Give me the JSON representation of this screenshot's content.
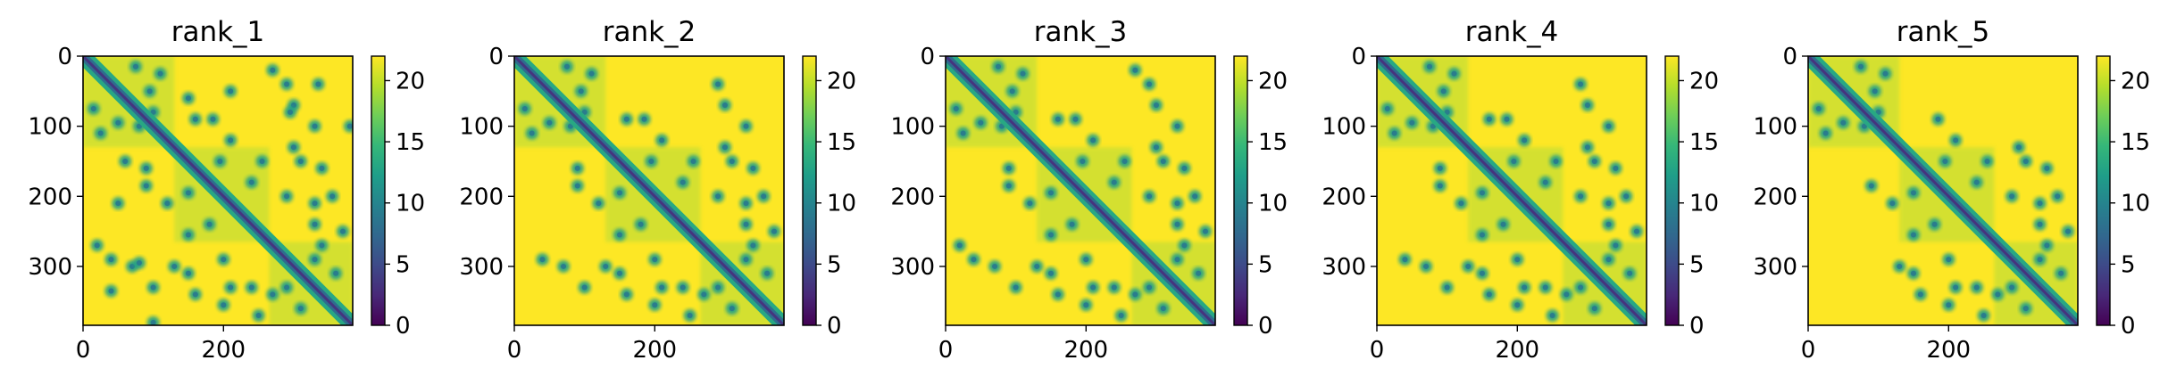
{
  "chart_data": [
    {
      "type": "heatmap",
      "title": "rank_1",
      "matrix_size": 384,
      "xlabel": "",
      "ylabel": "",
      "xlim": [
        0,
        384
      ],
      "ylim": [
        384,
        0
      ],
      "x_ticks": [
        "0",
        "200"
      ],
      "y_ticks": [
        "0",
        "100",
        "200",
        "300"
      ],
      "colorbar": {
        "min": 0,
        "max": 22,
        "ticks": [
          "0",
          "5",
          "10",
          "15",
          "20"
        ],
        "colormap": "viridis"
      },
      "off_diagonal_contacts": [
        [
          50,
          95
        ],
        [
          15,
          75
        ],
        [
          100,
          80
        ],
        [
          25,
          110
        ],
        [
          90,
          185
        ],
        [
          150,
          195
        ],
        [
          90,
          160
        ],
        [
          180,
          240
        ],
        [
          200,
          290
        ],
        [
          210,
          330
        ],
        [
          270,
          340
        ],
        [
          100,
          330
        ],
        [
          70,
          300
        ],
        [
          150,
          255
        ],
        [
          20,
          270
        ],
        [
          40,
          290
        ],
        [
          80,
          295
        ],
        [
          120,
          210
        ],
        [
          160,
          340
        ],
        [
          200,
          355
        ],
        [
          60,
          150
        ],
        [
          50,
          210
        ],
        [
          130,
          300
        ],
        [
          250,
          370
        ],
        [
          310,
          360
        ],
        [
          290,
          330
        ],
        [
          240,
          330
        ],
        [
          150,
          310
        ],
        [
          40,
          335
        ],
        [
          100,
          380
        ]
      ]
    },
    {
      "type": "heatmap",
      "title": "rank_2",
      "matrix_size": 384,
      "xlabel": "",
      "ylabel": "",
      "xlim": [
        0,
        384
      ],
      "ylim": [
        384,
        0
      ],
      "x_ticks": [
        "0",
        "200"
      ],
      "y_ticks": [
        "0",
        "100",
        "200",
        "300"
      ],
      "colorbar": {
        "min": 0,
        "max": 22,
        "ticks": [
          "0",
          "5",
          "10",
          "15",
          "20"
        ],
        "colormap": "viridis"
      },
      "off_diagonal_contacts": [
        [
          50,
          95
        ],
        [
          15,
          75
        ],
        [
          100,
          80
        ],
        [
          25,
          110
        ],
        [
          90,
          185
        ],
        [
          150,
          195
        ],
        [
          90,
          160
        ],
        [
          180,
          240
        ],
        [
          200,
          290
        ],
        [
          210,
          330
        ],
        [
          270,
          340
        ],
        [
          100,
          330
        ],
        [
          70,
          300
        ],
        [
          150,
          255
        ],
        [
          40,
          290
        ],
        [
          120,
          210
        ],
        [
          160,
          340
        ],
        [
          200,
          355
        ],
        [
          130,
          300
        ],
        [
          250,
          370
        ],
        [
          310,
          360
        ],
        [
          290,
          330
        ],
        [
          240,
          330
        ],
        [
          150,
          310
        ]
      ]
    },
    {
      "type": "heatmap",
      "title": "rank_3",
      "matrix_size": 384,
      "xlabel": "",
      "ylabel": "",
      "xlim": [
        0,
        384
      ],
      "ylim": [
        384,
        0
      ],
      "x_ticks": [
        "0",
        "200"
      ],
      "y_ticks": [
        "0",
        "100",
        "200",
        "300"
      ],
      "colorbar": {
        "min": 0,
        "max": 22,
        "ticks": [
          "0",
          "5",
          "10",
          "15",
          "20"
        ],
        "colormap": "viridis"
      },
      "off_diagonal_contacts": [
        [
          50,
          95
        ],
        [
          15,
          75
        ],
        [
          100,
          80
        ],
        [
          25,
          110
        ],
        [
          90,
          185
        ],
        [
          150,
          195
        ],
        [
          90,
          160
        ],
        [
          180,
          240
        ],
        [
          200,
          290
        ],
        [
          210,
          330
        ],
        [
          270,
          340
        ],
        [
          100,
          330
        ],
        [
          70,
          300
        ],
        [
          150,
          255
        ],
        [
          20,
          270
        ],
        [
          40,
          290
        ],
        [
          120,
          210
        ],
        [
          160,
          340
        ],
        [
          200,
          355
        ],
        [
          130,
          300
        ],
        [
          250,
          370
        ],
        [
          310,
          360
        ],
        [
          290,
          330
        ],
        [
          240,
          330
        ],
        [
          150,
          310
        ]
      ]
    },
    {
      "type": "heatmap",
      "title": "rank_4",
      "matrix_size": 384,
      "xlabel": "",
      "ylabel": "",
      "xlim": [
        0,
        384
      ],
      "ylim": [
        384,
        0
      ],
      "x_ticks": [
        "0",
        "200"
      ],
      "y_ticks": [
        "0",
        "100",
        "200",
        "300"
      ],
      "colorbar": {
        "min": 0,
        "max": 22,
        "ticks": [
          "0",
          "5",
          "10",
          "15",
          "20"
        ],
        "colormap": "viridis"
      },
      "off_diagonal_contacts": [
        [
          50,
          95
        ],
        [
          15,
          75
        ],
        [
          100,
          80
        ],
        [
          25,
          110
        ],
        [
          90,
          185
        ],
        [
          150,
          195
        ],
        [
          90,
          160
        ],
        [
          180,
          240
        ],
        [
          200,
          290
        ],
        [
          210,
          330
        ],
        [
          270,
          340
        ],
        [
          100,
          330
        ],
        [
          70,
          300
        ],
        [
          150,
          255
        ],
        [
          40,
          290
        ],
        [
          120,
          210
        ],
        [
          160,
          340
        ],
        [
          200,
          355
        ],
        [
          130,
          300
        ],
        [
          250,
          370
        ],
        [
          310,
          360
        ],
        [
          290,
          330
        ],
        [
          240,
          330
        ],
        [
          150,
          310
        ]
      ]
    },
    {
      "type": "heatmap",
      "title": "rank_5",
      "matrix_size": 384,
      "xlabel": "",
      "ylabel": "",
      "xlim": [
        0,
        384
      ],
      "ylim": [
        384,
        0
      ],
      "x_ticks": [
        "0",
        "200"
      ],
      "y_ticks": [
        "0",
        "100",
        "200",
        "300"
      ],
      "colorbar": {
        "min": 0,
        "max": 22,
        "ticks": [
          "0",
          "5",
          "10",
          "15",
          "20"
        ],
        "colormap": "viridis"
      },
      "off_diagonal_contacts": [
        [
          50,
          95
        ],
        [
          15,
          75
        ],
        [
          100,
          80
        ],
        [
          25,
          110
        ],
        [
          90,
          185
        ],
        [
          150,
          195
        ],
        [
          180,
          240
        ],
        [
          200,
          290
        ],
        [
          210,
          330
        ],
        [
          270,
          340
        ],
        [
          150,
          255
        ],
        [
          120,
          210
        ],
        [
          160,
          340
        ],
        [
          200,
          355
        ],
        [
          130,
          300
        ],
        [
          250,
          370
        ],
        [
          310,
          360
        ],
        [
          290,
          330
        ],
        [
          240,
          330
        ],
        [
          150,
          310
        ]
      ]
    }
  ]
}
